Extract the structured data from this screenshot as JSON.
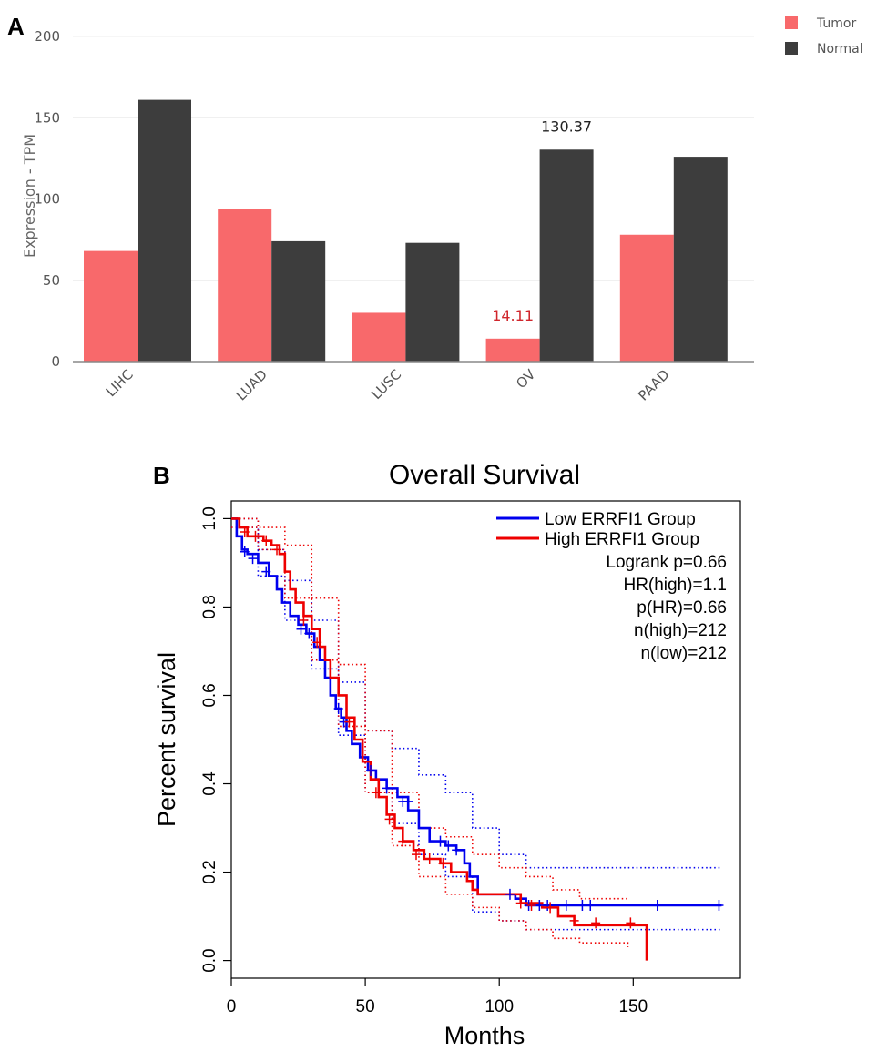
{
  "panel_a": {
    "letter": "A",
    "chart_data": {
      "type": "bar",
      "categories": [
        "LIHC",
        "LUAD",
        "LUSC",
        "OV",
        "PAAD"
      ],
      "series": [
        {
          "name": "Tumor",
          "color": "#f8696b",
          "values": [
            68,
            94,
            30,
            14.11,
            78
          ]
        },
        {
          "name": "Normal",
          "color": "#3d3d3d",
          "values": [
            161,
            74,
            73,
            130.37,
            126
          ]
        }
      ],
      "ylabel": "Expression - TPM",
      "ylim": [
        0,
        200
      ],
      "yticks": [
        0,
        50,
        100,
        150,
        200
      ],
      "grid": true,
      "legend_position": "top-right",
      "annotations": [
        {
          "text": "14.11",
          "category": "OV",
          "series": "Tumor",
          "color": "#d0262c"
        },
        {
          "text": "130.37",
          "category": "OV",
          "series": "Normal",
          "color": "#222222"
        }
      ]
    }
  },
  "panel_b": {
    "letter": "B",
    "chart_data": {
      "type": "line",
      "title": "Overall Survival",
      "xlabel": "Months",
      "ylabel": "Percent survival",
      "xlim": [
        0,
        190
      ],
      "ylim": [
        -0.04,
        1.04
      ],
      "xticks": [
        0,
        50,
        100,
        150
      ],
      "yticks": [
        0.0,
        0.2,
        0.4,
        0.6,
        0.8,
        1.0
      ],
      "legend_position": "top-right",
      "stats": [
        "Logrank p=0.66",
        "HR(high)=1.1",
        "p(HR)=0.66",
        "n(high)=212",
        "n(low)=212"
      ],
      "series": [
        {
          "name": "Low ERRFI1 Group",
          "color": "#0000ee",
          "points": [
            [
              0,
              1.0
            ],
            [
              2,
              0.96
            ],
            [
              4,
              0.93
            ],
            [
              6,
              0.92
            ],
            [
              10,
              0.9
            ],
            [
              14,
              0.87
            ],
            [
              17,
              0.84
            ],
            [
              19,
              0.81
            ],
            [
              22,
              0.78
            ],
            [
              25,
              0.76
            ],
            [
              28,
              0.74
            ],
            [
              31,
              0.71
            ],
            [
              33,
              0.68
            ],
            [
              35,
              0.64
            ],
            [
              37,
              0.6
            ],
            [
              39,
              0.57
            ],
            [
              41,
              0.55
            ],
            [
              43,
              0.52
            ],
            [
              45,
              0.49
            ],
            [
              48,
              0.46
            ],
            [
              51,
              0.43
            ],
            [
              54,
              0.41
            ],
            [
              58,
              0.39
            ],
            [
              62,
              0.37
            ],
            [
              66,
              0.34
            ],
            [
              70,
              0.3
            ],
            [
              74,
              0.27
            ],
            [
              80,
              0.26
            ],
            [
              84,
              0.25
            ],
            [
              87,
              0.22
            ],
            [
              89,
              0.19
            ],
            [
              92,
              0.15
            ],
            [
              100,
              0.15
            ],
            [
              106,
              0.14
            ],
            [
              110,
              0.125
            ],
            [
              183,
              0.125
            ]
          ],
          "censor_points": [
            [
              5,
              0.925
            ],
            [
              8,
              0.91
            ],
            [
              13,
              0.88
            ],
            [
              26,
              0.75
            ],
            [
              29,
              0.74
            ],
            [
              40,
              0.57
            ],
            [
              42,
              0.54
            ],
            [
              52,
              0.43
            ],
            [
              58,
              0.39
            ],
            [
              64,
              0.36
            ],
            [
              66,
              0.36
            ],
            [
              78,
              0.27
            ],
            [
              81,
              0.26
            ],
            [
              84,
              0.25
            ],
            [
              104,
              0.15
            ],
            [
              111,
              0.125
            ],
            [
              115,
              0.125
            ],
            [
              118,
              0.125
            ],
            [
              125,
              0.125
            ],
            [
              131,
              0.125
            ],
            [
              134,
              0.125
            ],
            [
              159,
              0.125
            ],
            [
              182,
              0.125
            ]
          ],
          "ci_upper": [
            [
              0,
              1.0
            ],
            [
              10,
              0.93
            ],
            [
              20,
              0.86
            ],
            [
              30,
              0.77
            ],
            [
              40,
              0.63
            ],
            [
              50,
              0.52
            ],
            [
              60,
              0.48
            ],
            [
              70,
              0.42
            ],
            [
              80,
              0.38
            ],
            [
              90,
              0.3
            ],
            [
              100,
              0.24
            ],
            [
              110,
              0.21
            ],
            [
              183,
              0.21
            ]
          ],
          "ci_lower": [
            [
              0,
              0.98
            ],
            [
              10,
              0.87
            ],
            [
              20,
              0.77
            ],
            [
              30,
              0.66
            ],
            [
              40,
              0.51
            ],
            [
              50,
              0.38
            ],
            [
              60,
              0.31
            ],
            [
              70,
              0.24
            ],
            [
              80,
              0.19
            ],
            [
              90,
              0.11
            ],
            [
              100,
              0.09
            ],
            [
              110,
              0.07
            ],
            [
              183,
              0.07
            ]
          ]
        },
        {
          "name": "High ERRFI1 Group",
          "color": "#ee0000",
          "points": [
            [
              0,
              1.0
            ],
            [
              3,
              0.98
            ],
            [
              6,
              0.96
            ],
            [
              12,
              0.95
            ],
            [
              15,
              0.94
            ],
            [
              18,
              0.92
            ],
            [
              20,
              0.88
            ],
            [
              22,
              0.84
            ],
            [
              24,
              0.81
            ],
            [
              27,
              0.78
            ],
            [
              30,
              0.75
            ],
            [
              33,
              0.71
            ],
            [
              35,
              0.68
            ],
            [
              37,
              0.64
            ],
            [
              40,
              0.6
            ],
            [
              43,
              0.55
            ],
            [
              46,
              0.5
            ],
            [
              49,
              0.45
            ],
            [
              52,
              0.41
            ],
            [
              55,
              0.37
            ],
            [
              58,
              0.33
            ],
            [
              61,
              0.3
            ],
            [
              64,
              0.27
            ],
            [
              68,
              0.25
            ],
            [
              72,
              0.23
            ],
            [
              78,
              0.22
            ],
            [
              82,
              0.2
            ],
            [
              88,
              0.18
            ],
            [
              90,
              0.16
            ],
            [
              92,
              0.15
            ],
            [
              108,
              0.13
            ],
            [
              116,
              0.12
            ],
            [
              122,
              0.1
            ],
            [
              128,
              0.08
            ],
            [
              155,
              0.08
            ],
            [
              155,
              0.0
            ]
          ],
          "censor_points": [
            [
              5,
              0.97
            ],
            [
              9,
              0.96
            ],
            [
              13,
              0.95
            ],
            [
              17,
              0.93
            ],
            [
              27,
              0.77
            ],
            [
              32,
              0.72
            ],
            [
              44,
              0.54
            ],
            [
              54,
              0.38
            ],
            [
              59,
              0.32
            ],
            [
              64,
              0.27
            ],
            [
              69,
              0.24
            ],
            [
              74,
              0.23
            ],
            [
              79,
              0.22
            ],
            [
              108,
              0.13
            ],
            [
              112,
              0.125
            ],
            [
              119,
              0.12
            ],
            [
              128,
              0.09
            ],
            [
              136,
              0.085
            ],
            [
              149,
              0.085
            ]
          ],
          "ci_upper": [
            [
              0,
              1.0
            ],
            [
              10,
              0.98
            ],
            [
              20,
              0.94
            ],
            [
              30,
              0.82
            ],
            [
              40,
              0.67
            ],
            [
              50,
              0.52
            ],
            [
              60,
              0.38
            ],
            [
              70,
              0.3
            ],
            [
              80,
              0.28
            ],
            [
              90,
              0.24
            ],
            [
              100,
              0.21
            ],
            [
              110,
              0.19
            ],
            [
              120,
              0.16
            ],
            [
              130,
              0.14
            ],
            [
              148,
              0.14
            ]
          ],
          "ci_lower": [
            [
              0,
              0.98
            ],
            [
              10,
              0.93
            ],
            [
              20,
              0.82
            ],
            [
              30,
              0.68
            ],
            [
              40,
              0.53
            ],
            [
              50,
              0.38
            ],
            [
              60,
              0.26
            ],
            [
              70,
              0.19
            ],
            [
              80,
              0.15
            ],
            [
              90,
              0.12
            ],
            [
              100,
              0.09
            ],
            [
              110,
              0.07
            ],
            [
              120,
              0.05
            ],
            [
              130,
              0.04
            ],
            [
              148,
              0.03
            ]
          ]
        }
      ]
    }
  }
}
